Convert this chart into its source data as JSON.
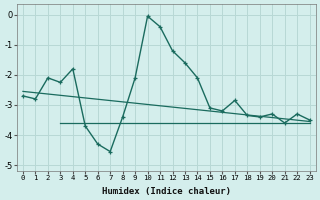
{
  "xlabel": "Humidex (Indice chaleur)",
  "x": [
    0,
    1,
    2,
    3,
    4,
    5,
    6,
    7,
    8,
    9,
    10,
    11,
    12,
    13,
    14,
    15,
    16,
    17,
    18,
    19,
    20,
    21,
    22,
    23
  ],
  "line1": [
    -2.7,
    -2.8,
    -2.1,
    -2.25,
    -1.8,
    -3.7,
    -4.3,
    -4.55,
    -3.4,
    -2.1,
    -0.05,
    -0.4,
    -1.2,
    -1.6,
    -2.1,
    -3.1,
    -3.2,
    -2.85,
    -3.35,
    -3.4,
    -3.3,
    -3.6,
    -3.3,
    -3.5
  ],
  "line2_x": [
    0,
    23
  ],
  "line2_y": [
    -2.55,
    -3.55
  ],
  "line3_x": [
    3,
    23
  ],
  "line3_y": [
    -3.6,
    -3.6
  ],
  "line_color": "#1a6b5e",
  "bg_color": "#d4eeec",
  "grid_color": "#b8d8d5",
  "ylim": [
    -5.2,
    0.35
  ],
  "xlim": [
    -0.5,
    23.5
  ],
  "yticks": [
    0,
    -1,
    -2,
    -3,
    -4,
    -5
  ]
}
